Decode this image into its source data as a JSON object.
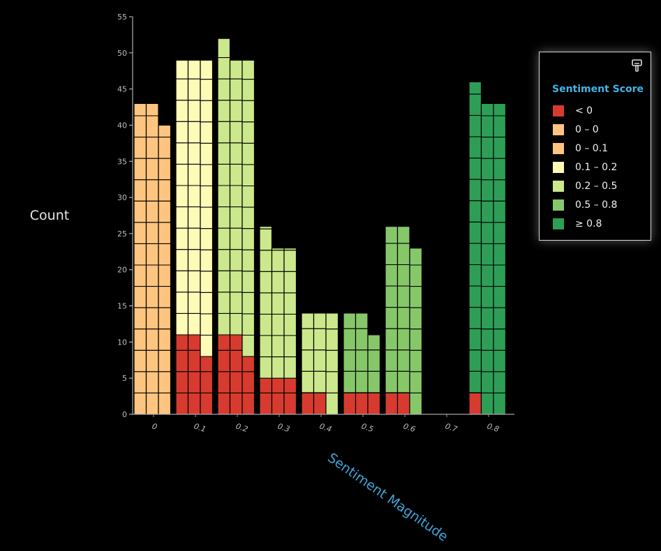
{
  "chart_data": {
    "type": "bar",
    "stacked": true,
    "ylabel": "Count",
    "xlabel": "Sentiment Magnitude",
    "ylim": [
      0,
      55
    ],
    "yticks": [
      0,
      5,
      10,
      15,
      20,
      25,
      30,
      35,
      40,
      45,
      50,
      55
    ],
    "categories": [
      "0",
      "0.1",
      "0.2",
      "0.3",
      "0.4",
      "0.5",
      "0.6",
      "0.7",
      "0.8"
    ],
    "columns_per_category": 3,
    "legend": {
      "title": "Sentiment Score",
      "placement": "top-right",
      "items": [
        {
          "label": "< 0",
          "color": "#d73b2f"
        },
        {
          "label": "0 – 0",
          "color": "#fdc580"
        },
        {
          "label": "0 – 0.1",
          "color": "#fdc580"
        },
        {
          "label": "0.1 – 0.2",
          "color": "#fefbb6"
        },
        {
          "label": "0.2 – 0.5",
          "color": "#cbe88c"
        },
        {
          "label": "0.5 – 0.8",
          "color": "#86c76a"
        },
        {
          "label": "≥ 0.8",
          "color": "#2e9e56"
        }
      ]
    },
    "series": [
      {
        "name": "< 0",
        "color": "#d73b2f",
        "values": [
          [
            0,
            0,
            0
          ],
          [
            11,
            11,
            8
          ],
          [
            11,
            11,
            8
          ],
          [
            5,
            5,
            5
          ],
          [
            3,
            3,
            0
          ],
          [
            3,
            3,
            3
          ],
          [
            3,
            3,
            0
          ],
          [
            0,
            0,
            0
          ],
          [
            3,
            0,
            0
          ]
        ]
      },
      {
        "name": "0 – 0.1",
        "color": "#fdc580",
        "values": [
          [
            43,
            43,
            40
          ],
          [
            0,
            0,
            0
          ],
          [
            0,
            0,
            0
          ],
          [
            0,
            0,
            0
          ],
          [
            0,
            0,
            0
          ],
          [
            0,
            0,
            0
          ],
          [
            0,
            0,
            0
          ],
          [
            0,
            0,
            0
          ],
          [
            0,
            0,
            0
          ]
        ]
      },
      {
        "name": "0.1 – 0.2",
        "color": "#fefbb6",
        "values": [
          [
            0,
            0,
            0
          ],
          [
            38,
            38,
            41
          ],
          [
            0,
            0,
            0
          ],
          [
            0,
            0,
            0
          ],
          [
            0,
            0,
            0
          ],
          [
            0,
            0,
            0
          ],
          [
            0,
            0,
            0
          ],
          [
            0,
            0,
            0
          ],
          [
            0,
            0,
            0
          ]
        ]
      },
      {
        "name": "0.2 – 0.5",
        "color": "#cbe88c",
        "values": [
          [
            0,
            0,
            0
          ],
          [
            0,
            0,
            0
          ],
          [
            41,
            38,
            41
          ],
          [
            21,
            18,
            18
          ],
          [
            11,
            11,
            14
          ],
          [
            0,
            0,
            0
          ],
          [
            0,
            0,
            0
          ],
          [
            0,
            0,
            0
          ],
          [
            0,
            0,
            0
          ]
        ]
      },
      {
        "name": "0.5 – 0.8",
        "color": "#86c76a",
        "values": [
          [
            0,
            0,
            0
          ],
          [
            0,
            0,
            0
          ],
          [
            0,
            0,
            0
          ],
          [
            0,
            0,
            0
          ],
          [
            0,
            0,
            0
          ],
          [
            11,
            11,
            8
          ],
          [
            23,
            23,
            23
          ],
          [
            0,
            0,
            0
          ],
          [
            0,
            0,
            0
          ]
        ]
      },
      {
        "name": "≥ 0.8",
        "color": "#2e9e56",
        "values": [
          [
            0,
            0,
            0
          ],
          [
            0,
            0,
            0
          ],
          [
            0,
            0,
            0
          ],
          [
            0,
            0,
            0
          ],
          [
            0,
            0,
            0
          ],
          [
            0,
            0,
            0
          ],
          [
            0,
            0,
            0
          ],
          [
            0,
            0,
            0
          ],
          [
            43,
            43,
            43
          ]
        ]
      }
    ],
    "grid": false
  },
  "legend_icon": "paint-brush-icon"
}
